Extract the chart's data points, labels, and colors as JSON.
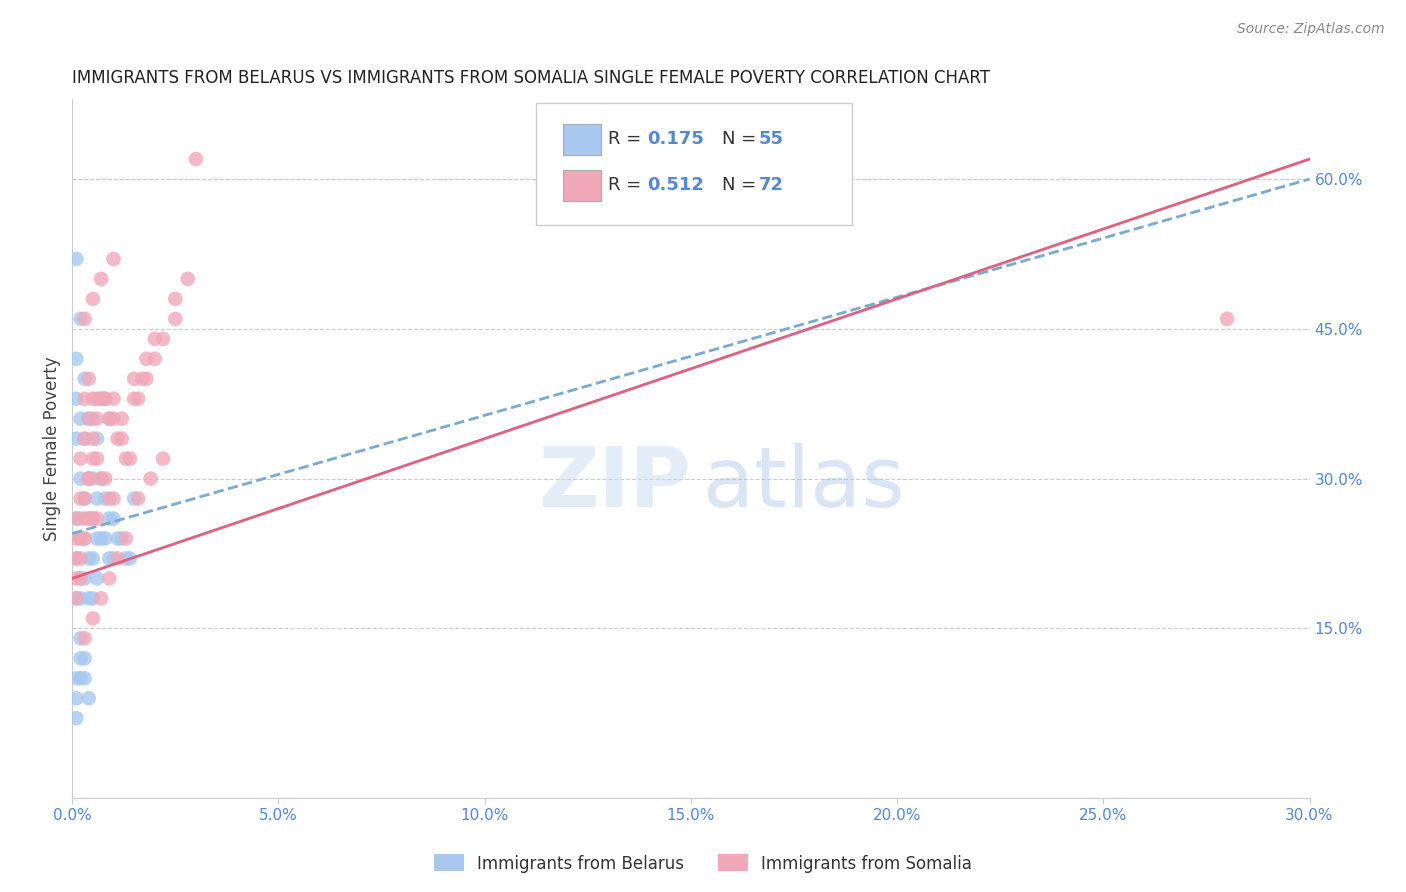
{
  "title": "IMMIGRANTS FROM BELARUS VS IMMIGRANTS FROM SOMALIA SINGLE FEMALE POVERTY CORRELATION CHART",
  "source": "Source: ZipAtlas.com",
  "ylabel": "Single Female Poverty",
  "right_yticks": [
    0.0,
    0.15,
    0.3,
    0.45,
    0.6
  ],
  "right_yticklabels": [
    "",
    "15.0%",
    "30.0%",
    "45.0%",
    "60.0%"
  ],
  "xlim": [
    0.0,
    0.3
  ],
  "ylim": [
    -0.02,
    0.68
  ],
  "watermark_zip": "ZIP",
  "watermark_atlas": "atlas",
  "legend_r1": "R = 0.175",
  "legend_n1": "N = 55",
  "legend_r2": "R = 0.512",
  "legend_n2": "N = 72",
  "label1": "Immigrants from Belarus",
  "label2": "Immigrants from Somalia",
  "color1": "#a8c8f0",
  "color2": "#f0a8b8",
  "trendline1_color": "#7aaad0",
  "trendline2_color": "#e06080",
  "belarus_x": [
    0.001,
    0.001,
    0.001,
    0.001,
    0.001,
    0.001,
    0.002,
    0.002,
    0.002,
    0.002,
    0.002,
    0.002,
    0.003,
    0.003,
    0.003,
    0.003,
    0.004,
    0.004,
    0.004,
    0.004,
    0.005,
    0.005,
    0.005,
    0.005,
    0.006,
    0.006,
    0.006,
    0.007,
    0.007,
    0.008,
    0.008,
    0.009,
    0.009,
    0.01,
    0.01,
    0.011,
    0.012,
    0.013,
    0.014,
    0.015,
    0.001,
    0.002,
    0.003,
    0.004,
    0.005,
    0.006,
    0.002,
    0.003,
    0.001,
    0.002,
    0.003,
    0.004,
    0.001,
    0.001,
    0.002
  ],
  "belarus_y": [
    0.52,
    0.42,
    0.38,
    0.34,
    0.26,
    0.22,
    0.46,
    0.36,
    0.3,
    0.26,
    0.24,
    0.2,
    0.4,
    0.34,
    0.28,
    0.24,
    0.36,
    0.3,
    0.26,
    0.22,
    0.36,
    0.3,
    0.26,
    0.22,
    0.34,
    0.28,
    0.24,
    0.3,
    0.24,
    0.28,
    0.24,
    0.26,
    0.22,
    0.26,
    0.22,
    0.24,
    0.24,
    0.22,
    0.22,
    0.28,
    0.18,
    0.18,
    0.2,
    0.18,
    0.18,
    0.2,
    0.1,
    0.12,
    0.1,
    0.12,
    0.1,
    0.08,
    0.06,
    0.08,
    0.14
  ],
  "somalia_x": [
    0.001,
    0.001,
    0.001,
    0.001,
    0.002,
    0.002,
    0.002,
    0.002,
    0.003,
    0.003,
    0.003,
    0.003,
    0.004,
    0.004,
    0.004,
    0.004,
    0.005,
    0.005,
    0.005,
    0.006,
    0.006,
    0.006,
    0.007,
    0.007,
    0.008,
    0.008,
    0.009,
    0.009,
    0.01,
    0.01,
    0.011,
    0.012,
    0.013,
    0.014,
    0.015,
    0.016,
    0.017,
    0.018,
    0.02,
    0.022,
    0.025,
    0.028,
    0.03,
    0.001,
    0.002,
    0.003,
    0.004,
    0.005,
    0.006,
    0.007,
    0.008,
    0.009,
    0.01,
    0.012,
    0.015,
    0.018,
    0.02,
    0.025,
    0.003,
    0.005,
    0.007,
    0.009,
    0.011,
    0.013,
    0.016,
    0.019,
    0.022,
    0.003,
    0.005,
    0.007,
    0.01,
    0.28
  ],
  "somalia_y": [
    0.26,
    0.24,
    0.22,
    0.2,
    0.32,
    0.28,
    0.24,
    0.2,
    0.38,
    0.34,
    0.28,
    0.24,
    0.4,
    0.36,
    0.3,
    0.26,
    0.38,
    0.32,
    0.26,
    0.38,
    0.32,
    0.26,
    0.38,
    0.3,
    0.38,
    0.3,
    0.36,
    0.28,
    0.36,
    0.28,
    0.34,
    0.34,
    0.32,
    0.32,
    0.4,
    0.38,
    0.4,
    0.42,
    0.42,
    0.44,
    0.46,
    0.5,
    0.62,
    0.18,
    0.22,
    0.26,
    0.3,
    0.34,
    0.36,
    0.38,
    0.38,
    0.36,
    0.38,
    0.36,
    0.38,
    0.4,
    0.44,
    0.48,
    0.14,
    0.16,
    0.18,
    0.2,
    0.22,
    0.24,
    0.28,
    0.3,
    0.32,
    0.46,
    0.48,
    0.5,
    0.52,
    0.46
  ],
  "belarus_trend_x": [
    0.0,
    0.3
  ],
  "belarus_trend_y": [
    0.245,
    0.6
  ],
  "somalia_trend_x": [
    0.0,
    0.3
  ],
  "somalia_trend_y": [
    0.2,
    0.62
  ]
}
